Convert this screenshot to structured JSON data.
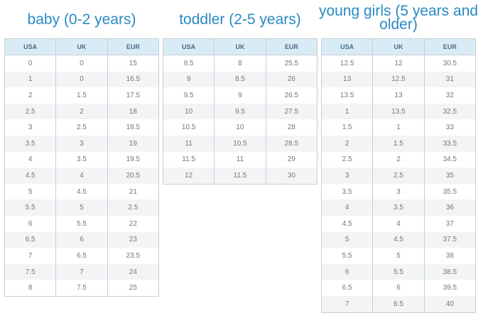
{
  "sections": [
    {
      "title": "baby (0-2 years)",
      "headers": [
        "USA",
        "UK",
        "EUR"
      ],
      "rows": [
        [
          "0",
          "0",
          "15"
        ],
        [
          "1",
          "0",
          "16.5"
        ],
        [
          "2",
          "1.5",
          "17.5"
        ],
        [
          "2.5",
          "2",
          "18"
        ],
        [
          "3",
          "2.5",
          "18.5"
        ],
        [
          "3.5",
          "3",
          "19"
        ],
        [
          "4",
          "3.5",
          "19.5"
        ],
        [
          "4.5",
          "4",
          "20.5"
        ],
        [
          "5",
          "4.5",
          "21"
        ],
        [
          "5.5",
          "5",
          "2.5"
        ],
        [
          "6",
          "5.5",
          "22"
        ],
        [
          "6.5",
          "6",
          "23"
        ],
        [
          "7",
          "6.5",
          "23.5"
        ],
        [
          "7.5",
          "7",
          "24"
        ],
        [
          "8",
          "7.5",
          "25"
        ]
      ]
    },
    {
      "title": "toddler (2-5 years)",
      "headers": [
        "USA",
        "UK",
        "EUR"
      ],
      "rows": [
        [
          "8.5",
          "8",
          "25.5"
        ],
        [
          "9",
          "8.5",
          "26"
        ],
        [
          "9.5",
          "9",
          "26.5"
        ],
        [
          "10",
          "9.5",
          "27.5"
        ],
        [
          "10.5",
          "10",
          "28"
        ],
        [
          "11",
          "10.5",
          "28.5"
        ],
        [
          "11.5",
          "11",
          "29"
        ],
        [
          "12",
          "11.5",
          "30"
        ]
      ]
    },
    {
      "title": "young girls (5 years and older)",
      "headers": [
        "USA",
        "UK",
        "EUR"
      ],
      "rows": [
        [
          "12.5",
          "12",
          "30.5"
        ],
        [
          "13",
          "12.5",
          "31"
        ],
        [
          "13.5",
          "13",
          "32"
        ],
        [
          "1",
          "13.5",
          "32.5"
        ],
        [
          "1.5",
          "1",
          "33"
        ],
        [
          "2",
          "1.5",
          "33.5"
        ],
        [
          "2.5",
          "2",
          "34.5"
        ],
        [
          "3",
          "2.5",
          "35"
        ],
        [
          "3.5",
          "3",
          "35.5"
        ],
        [
          "4",
          "3.5",
          "36"
        ],
        [
          "4.5",
          "4",
          "37"
        ],
        [
          "5",
          "4.5",
          "37.5"
        ],
        [
          "5.5",
          "5",
          "38"
        ],
        [
          "6",
          "5.5",
          "38.5"
        ],
        [
          "6.5",
          "6",
          "39.5"
        ],
        [
          "7",
          "6.5",
          "40"
        ]
      ]
    }
  ],
  "colors": {
    "heading": "#2a8ac2",
    "header_bg": "#d9ecf6",
    "header_text": "#4a6b85",
    "row_alt": "#f2f4f6",
    "cell_text": "#777777",
    "border": "#c9ced3"
  }
}
